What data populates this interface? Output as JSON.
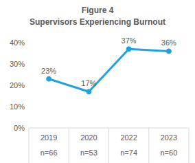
{
  "chart_data": {
    "type": "line",
    "title": "Figure 4",
    "subtitle": "Supervisors Experiencing Burnout",
    "categories": [
      "2019",
      "2020",
      "2022",
      "2023"
    ],
    "sample_sizes": [
      "n=66",
      "n=53",
      "n=74",
      "n=60"
    ],
    "values": [
      23,
      17,
      37,
      36
    ],
    "value_labels": [
      "23%",
      "17%",
      "37%",
      "36%"
    ],
    "color": "#1fa2df",
    "marker": "circle",
    "line_style": "solid",
    "ylim": [
      0,
      40
    ],
    "yticks": [
      {
        "value": 0,
        "label": "0%"
      },
      {
        "value": 10,
        "label": "10%"
      },
      {
        "value": 20,
        "label": "20%"
      },
      {
        "value": 30,
        "label": "30%"
      },
      {
        "value": 40,
        "label": "40%"
      }
    ],
    "grid": false,
    "data_labels": true
  }
}
